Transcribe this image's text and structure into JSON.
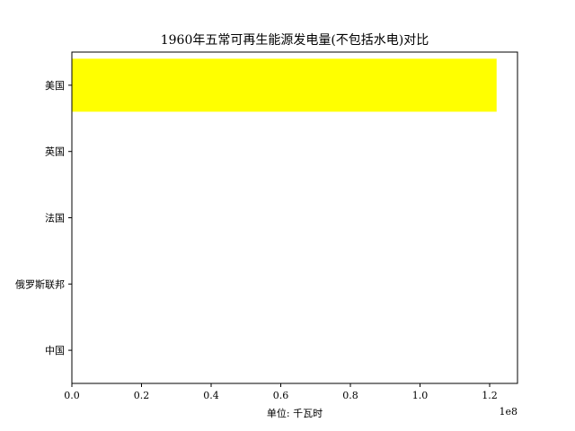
{
  "chart_data": {
    "type": "bar",
    "orientation": "horizontal",
    "title": "1960年五常可再生能源发电量(不包括水电)对比",
    "xlabel": "单位: 千瓦时",
    "ylabel": "",
    "x_offset_label": "1e8",
    "x_scale_factor": 100000000,
    "xlim": [
      0,
      1.28
    ],
    "x_ticks": [
      0,
      0.2,
      0.4,
      0.6,
      0.8,
      1.0,
      1.2
    ],
    "x_tick_labels": [
      "0.0",
      "0.2",
      "0.4",
      "0.6",
      "0.8",
      "1.0",
      "1.2"
    ],
    "categories": [
      "美国",
      "英国",
      "法国",
      "俄罗斯联邦",
      "中国"
    ],
    "values": [
      1.22,
      0,
      0,
      0,
      0
    ],
    "bar_color": "#ffff00",
    "grid": false,
    "legend": "none"
  }
}
